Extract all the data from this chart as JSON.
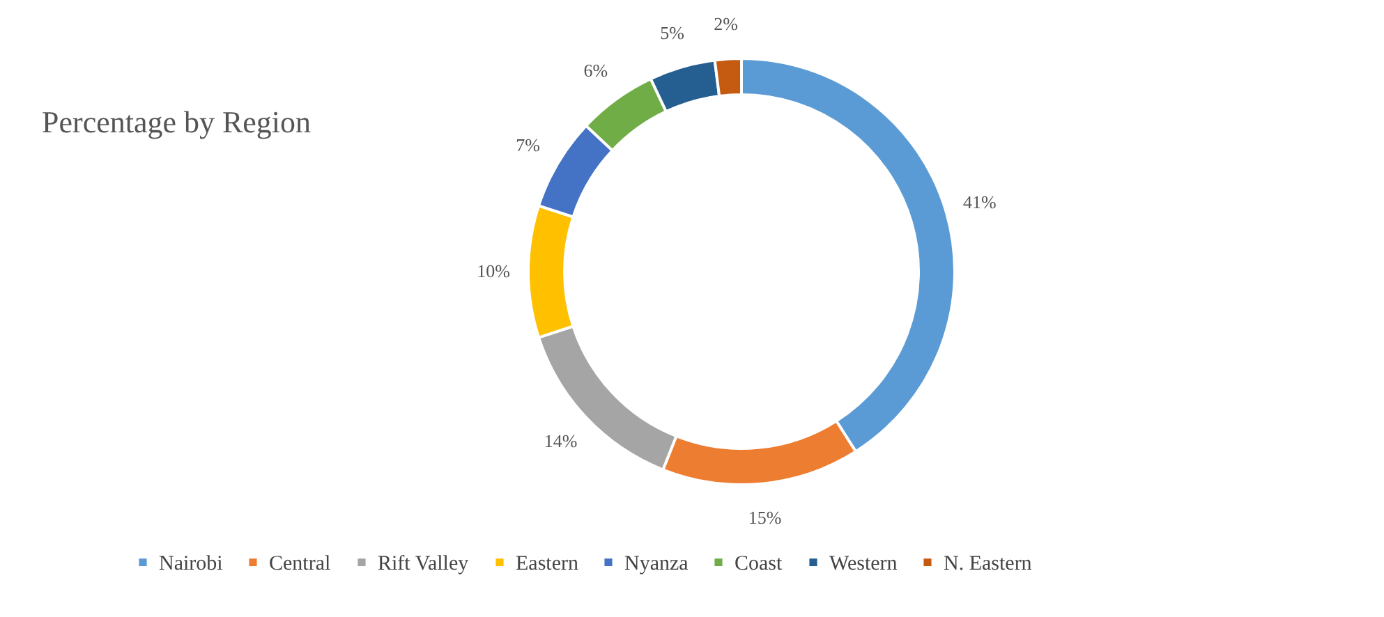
{
  "chart_data": {
    "type": "donut",
    "title": "Percentage by Region",
    "categories": [
      "Nairobi",
      "Central",
      "Rift Valley",
      "Eastern",
      "Nyanza",
      "Coast",
      "Western",
      "N. Eastern"
    ],
    "values": [
      41,
      15,
      14,
      10,
      7,
      6,
      5,
      2
    ],
    "value_labels": [
      "41%",
      "15%",
      "14%",
      "10%",
      "7%",
      "6%",
      "5%",
      "2%"
    ],
    "colors": [
      "#5b9bd5",
      "#ed7d31",
      "#a5a5a5",
      "#ffc000",
      "#4472c4",
      "#70ad47",
      "#255e91",
      "#c55a11"
    ],
    "legend": "bottom"
  }
}
